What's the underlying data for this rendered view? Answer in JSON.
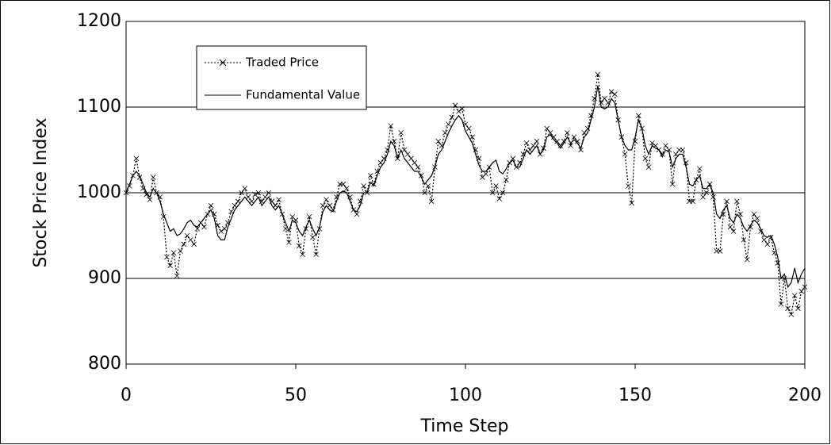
{
  "chart_data": {
    "type": "line",
    "xlabel": "Time Step",
    "ylabel": "Stock Price Index",
    "x": [
      0,
      1,
      2,
      3,
      4,
      5,
      6,
      7,
      8,
      9,
      10,
      11,
      12,
      13,
      14,
      15,
      16,
      17,
      18,
      19,
      20,
      21,
      22,
      23,
      24,
      25,
      26,
      27,
      28,
      29,
      30,
      31,
      32,
      33,
      34,
      35,
      36,
      37,
      38,
      39,
      40,
      41,
      42,
      43,
      44,
      45,
      46,
      47,
      48,
      49,
      50,
      51,
      52,
      53,
      54,
      55,
      56,
      57,
      58,
      59,
      60,
      61,
      62,
      63,
      64,
      65,
      66,
      67,
      68,
      69,
      70,
      71,
      72,
      73,
      74,
      75,
      76,
      77,
      78,
      79,
      80,
      81,
      82,
      83,
      84,
      85,
      86,
      87,
      88,
      89,
      90,
      91,
      92,
      93,
      94,
      95,
      96,
      97,
      98,
      99,
      100,
      101,
      102,
      103,
      104,
      105,
      106,
      107,
      108,
      109,
      110,
      111,
      112,
      113,
      114,
      115,
      116,
      117,
      118,
      119,
      120,
      121,
      122,
      123,
      124,
      125,
      126,
      127,
      128,
      129,
      130,
      131,
      132,
      133,
      134,
      135,
      136,
      137,
      138,
      139,
      140,
      141,
      142,
      143,
      144,
      145,
      146,
      147,
      148,
      149,
      150,
      151,
      152,
      153,
      154,
      155,
      156,
      157,
      158,
      159,
      160,
      161,
      162,
      163,
      164,
      165,
      166,
      167,
      168,
      169,
      170,
      171,
      172,
      173,
      174,
      175,
      176,
      177,
      178,
      179,
      180,
      181,
      182,
      183,
      184,
      185,
      186,
      187,
      188,
      189,
      190,
      191,
      192,
      193,
      194,
      195,
      196,
      197,
      198,
      199,
      200
    ],
    "series": [
      {
        "name": "Traded Price",
        "color": "#000000",
        "style": "dotted",
        "marker": "x",
        "values": [
          1000,
          1008,
          1020,
          1040,
          1018,
          1005,
          998,
          992,
          1018,
          1000,
          995,
          972,
          925,
          915,
          930,
          903,
          932,
          940,
          950,
          945,
          940,
          958,
          965,
          960,
          975,
          985,
          975,
          962,
          955,
          958,
          965,
          978,
          985,
          990,
          1000,
          1005,
          995,
          990,
          998,
          1000,
          990,
          995,
          1000,
          990,
          985,
          992,
          975,
          958,
          942,
          972,
          968,
          938,
          928,
          958,
          972,
          948,
          928,
          958,
          985,
          992,
          985,
          980,
          995,
          1010,
          1010,
          1005,
          995,
          980,
          975,
          990,
          1008,
          1000,
          1020,
          1010,
          1025,
          1035,
          1040,
          1050,
          1078,
          1060,
          1040,
          1070,
          1050,
          1045,
          1040,
          1035,
          1030,
          1020,
          1000,
          1008,
          990,
          1030,
          1060,
          1055,
          1070,
          1080,
          1088,
          1102,
          1095,
          1098,
          1080,
          1075,
          1065,
          1050,
          1040,
          1018,
          1022,
          1030,
          1000,
          1008,
          993,
          1000,
          1015,
          1035,
          1040,
          1030,
          1035,
          1045,
          1058,
          1050,
          1055,
          1060,
          1045,
          1052,
          1075,
          1070,
          1065,
          1060,
          1055,
          1060,
          1070,
          1055,
          1065,
          1060,
          1050,
          1070,
          1075,
          1090,
          1110,
          1138,
          1105,
          1110,
          1105,
          1118,
          1115,
          1085,
          1065,
          1045,
          1008,
          988,
          1060,
          1090,
          1075,
          1040,
          1030,
          1058,
          1055,
          1050,
          1045,
          1055,
          1050,
          1010,
          1045,
          1050,
          1050,
          1035,
          990,
          990,
          1015,
          1028,
          995,
          1000,
          1010,
          995,
          932,
          932,
          975,
          990,
          960,
          955,
          990,
          975,
          945,
          922,
          960,
          975,
          970,
          955,
          945,
          940,
          948,
          930,
          918,
          870,
          900,
          865,
          858,
          880,
          865,
          885,
          890
        ]
      },
      {
        "name": "Fundamental Value",
        "color": "#000000",
        "style": "solid",
        "values": [
          1000,
          1010,
          1020,
          1025,
          1020,
          1010,
          1000,
          995,
          1005,
          1000,
          990,
          975,
          965,
          955,
          958,
          950,
          952,
          958,
          965,
          968,
          962,
          960,
          965,
          970,
          975,
          980,
          970,
          950,
          945,
          945,
          960,
          970,
          980,
          985,
          990,
          995,
          990,
          985,
          990,
          995,
          985,
          990,
          995,
          985,
          980,
          985,
          975,
          965,
          955,
          968,
          965,
          955,
          950,
          960,
          968,
          958,
          950,
          960,
          978,
          985,
          980,
          978,
          990,
          1000,
          1002,
          1000,
          990,
          980,
          978,
          985,
          1000,
          1000,
          1012,
          1008,
          1020,
          1030,
          1035,
          1045,
          1060,
          1055,
          1040,
          1050,
          1040,
          1035,
          1030,
          1025,
          1025,
          1018,
          1010,
          1015,
          1020,
          1030,
          1045,
          1050,
          1060,
          1070,
          1078,
          1085,
          1090,
          1085,
          1072,
          1065,
          1058,
          1045,
          1032,
          1025,
          1025,
          1030,
          1035,
          1038,
          1025,
          1022,
          1028,
          1035,
          1038,
          1030,
          1030,
          1040,
          1050,
          1045,
          1050,
          1055,
          1045,
          1050,
          1065,
          1068,
          1062,
          1058,
          1052,
          1058,
          1065,
          1058,
          1062,
          1058,
          1052,
          1065,
          1070,
          1085,
          1100,
          1125,
          1100,
          1098,
          1100,
          1110,
          1105,
          1085,
          1065,
          1055,
          1050,
          1050,
          1065,
          1085,
          1075,
          1055,
          1045,
          1055,
          1052,
          1050,
          1042,
          1050,
          1048,
          1030,
          1040,
          1045,
          1045,
          1030,
          1010,
          1008,
          1015,
          1020,
          1005,
          1005,
          1010,
          1000,
          975,
          970,
          980,
          985,
          970,
          965,
          975,
          970,
          960,
          955,
          962,
          968,
          965,
          958,
          950,
          948,
          950,
          940,
          925,
          900,
          905,
          890,
          895,
          912,
          895,
          905,
          912
        ]
      }
    ],
    "xlim": [
      0,
      200
    ],
    "xticks": [
      0,
      50,
      100,
      150,
      200
    ],
    "ylim": [
      800,
      1200
    ],
    "yticks": [
      800,
      900,
      1000,
      1100,
      1200
    ],
    "grid": true,
    "legend": "upper left"
  }
}
